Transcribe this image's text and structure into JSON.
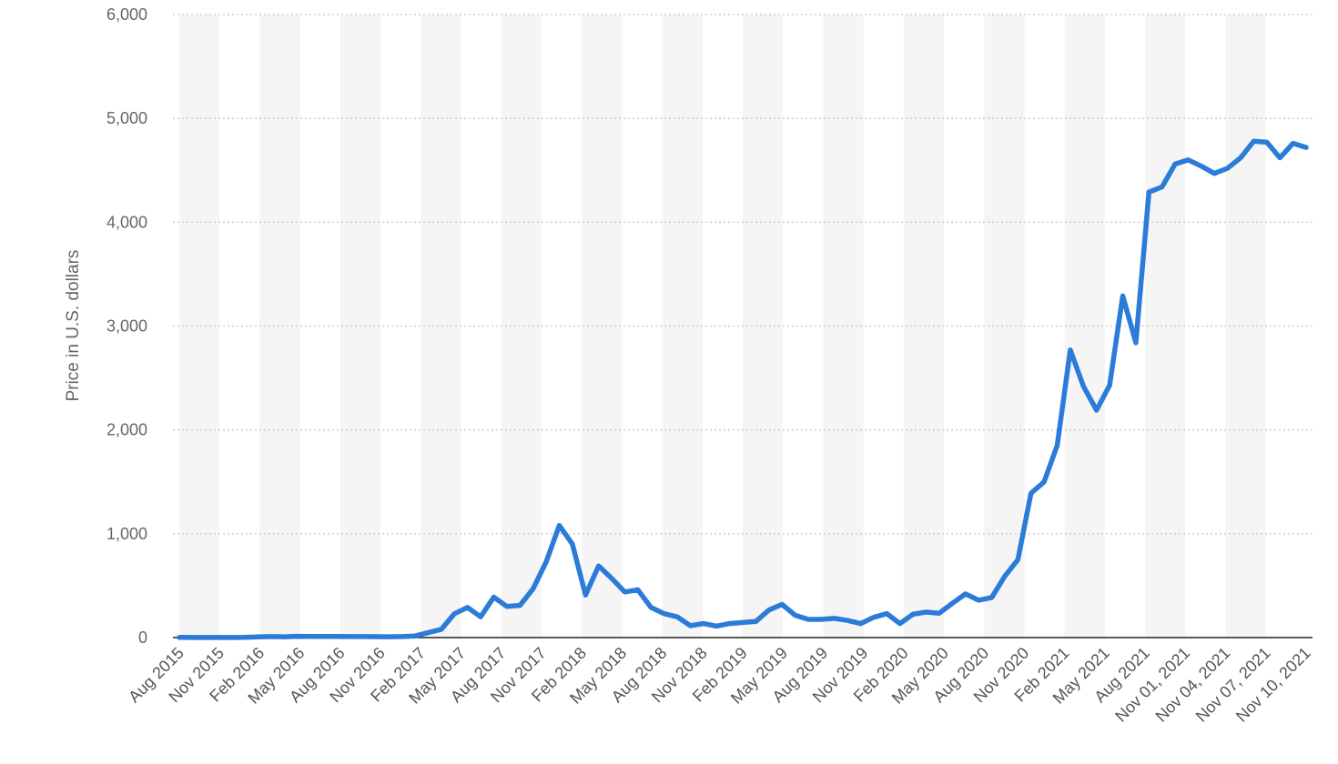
{
  "chart_data": {
    "type": "line",
    "ylabel": "Price in U.S. dollars",
    "ylim": [
      0,
      6000
    ],
    "yticks": [
      0,
      1000,
      2000,
      3000,
      4000,
      5000,
      6000
    ],
    "ytick_labels": [
      "0",
      "1,000",
      "2,000",
      "3,000",
      "4,000",
      "5,000",
      "6,000"
    ],
    "xtick_labels": [
      "Aug 2015",
      "Nov 2015",
      "Feb 2016",
      "May 2016",
      "Aug 2016",
      "Nov 2016",
      "Feb 2017",
      "May 2017",
      "Aug 2017",
      "Nov 2017",
      "Feb 2018",
      "May 2018",
      "Aug 2018",
      "Nov 2018",
      "Feb 2019",
      "May 2019",
      "Aug 2019",
      "Nov 2019",
      "Feb 2020",
      "May 2020",
      "Aug 2020",
      "Nov 2020",
      "Feb 2021",
      "May 2021",
      "Aug 2021",
      "Nov 01, 2021",
      "Nov 04, 2021",
      "Nov 07, 2021",
      "Nov 10, 2021"
    ],
    "grid": true,
    "colors": {
      "line": "#2b7bd8"
    },
    "series": [
      {
        "values": [
          2,
          1,
          1,
          1,
          1,
          2,
          6,
          10,
          8,
          12,
          11,
          11,
          11,
          10,
          10,
          9,
          8,
          10,
          16,
          47,
          80,
          230,
          290,
          200,
          390,
          300,
          310,
          470,
          730,
          1080,
          900,
          410,
          690,
          570,
          440,
          460,
          290,
          230,
          200,
          115,
          135,
          110,
          135,
          145,
          155,
          265,
          320,
          215,
          175,
          175,
          185,
          165,
          135,
          195,
          230,
          135,
          225,
          245,
          235,
          330,
          420,
          360,
          385,
          590,
          750,
          1390,
          1500,
          1850,
          2770,
          2420,
          2190,
          2430,
          3290,
          2840,
          4290,
          4340,
          4560,
          4600,
          4540,
          4470,
          4520,
          4620,
          4780,
          4770,
          4620,
          4760,
          4720
        ]
      }
    ]
  }
}
